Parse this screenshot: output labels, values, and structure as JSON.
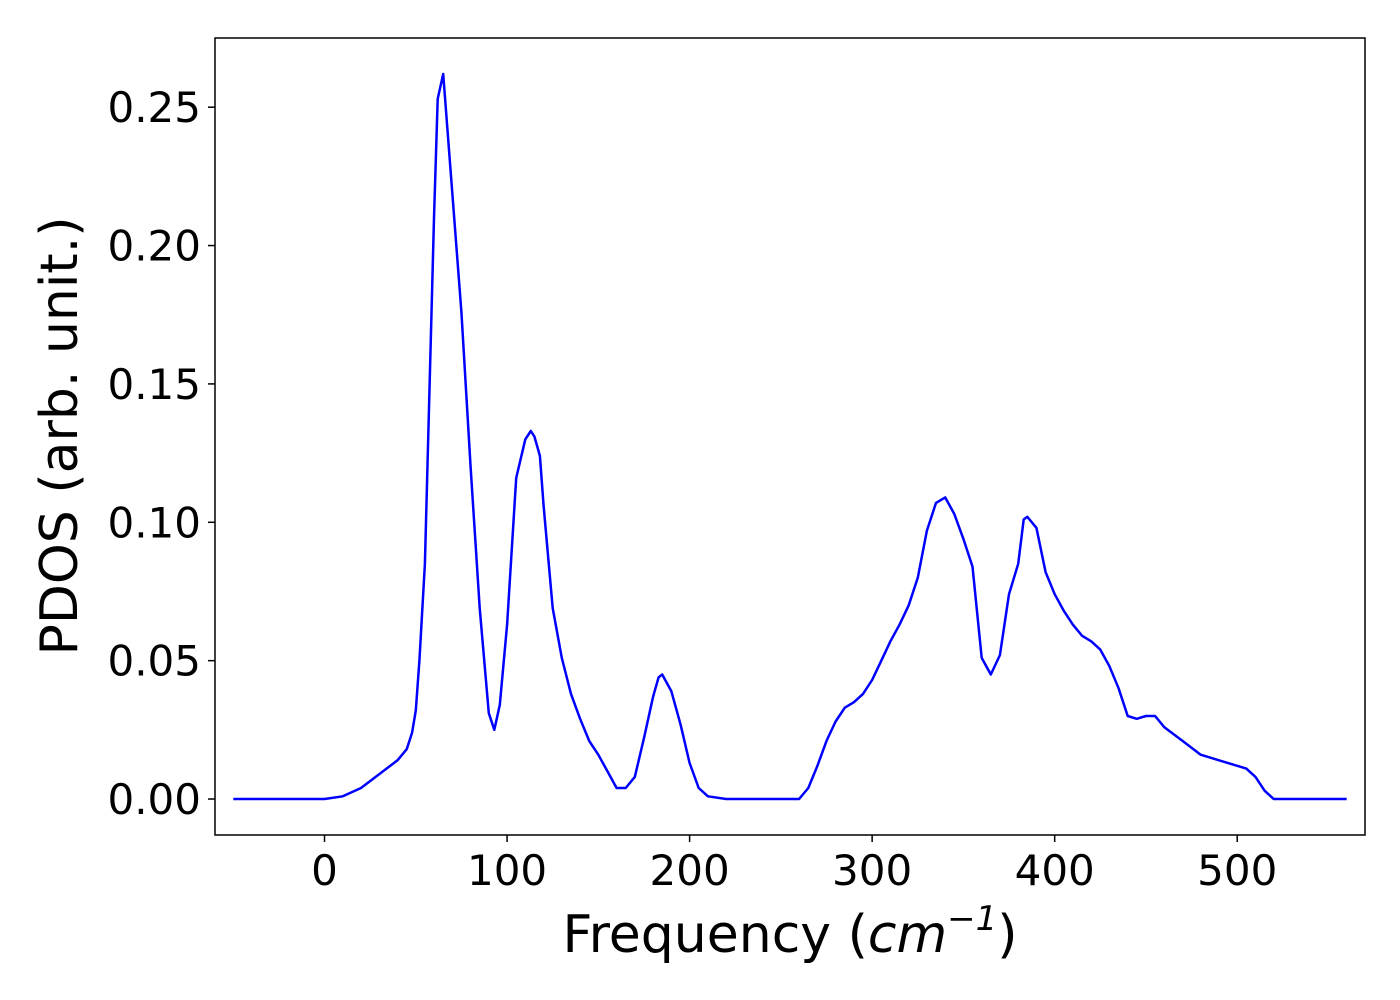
{
  "chart_data": {
    "type": "line",
    "title": "",
    "xlabel": "Frequency (",
    "xlabel_math_base": "cm",
    "xlabel_math_sup": "−1",
    "xlabel_close": ")",
    "ylabel": "PDOS (arb. unit.)",
    "xlim": [
      -60,
      570
    ],
    "ylim": [
      -0.013,
      0.275
    ],
    "x_ticks": [
      0,
      100,
      200,
      300,
      400,
      500
    ],
    "x_tick_labels": [
      "0",
      "100",
      "200",
      "300",
      "400",
      "500"
    ],
    "y_ticks": [
      0.0,
      0.05,
      0.1,
      0.15,
      0.2,
      0.25
    ],
    "y_tick_labels": [
      "0.00",
      "0.05",
      "0.10",
      "0.15",
      "0.20",
      "0.25"
    ],
    "grid": false,
    "series": [
      {
        "color": "#0000ff",
        "x": [
          -50,
          0,
          10,
          20,
          30,
          40,
          45,
          48,
          50,
          52,
          55,
          60,
          62,
          65,
          70,
          75,
          80,
          85,
          90,
          93,
          96,
          100,
          105,
          110,
          113,
          115,
          118,
          120,
          125,
          130,
          135,
          140,
          145,
          150,
          155,
          160,
          165,
          170,
          175,
          180,
          183,
          185,
          190,
          195,
          200,
          205,
          210,
          220,
          230,
          240,
          250,
          260,
          265,
          270,
          275,
          280,
          285,
          290,
          295,
          300,
          305,
          310,
          315,
          320,
          325,
          330,
          335,
          340,
          345,
          350,
          355,
          360,
          365,
          370,
          375,
          380,
          383,
          385,
          390,
          395,
          400,
          405,
          410,
          415,
          420,
          425,
          430,
          435,
          440,
          445,
          450,
          455,
          460,
          470,
          480,
          490,
          500,
          505,
          510,
          515,
          520,
          530,
          560
        ],
        "y": [
          0.0,
          0.0,
          0.001,
          0.004,
          0.009,
          0.014,
          0.018,
          0.024,
          0.032,
          0.05,
          0.085,
          0.21,
          0.253,
          0.262,
          0.219,
          0.176,
          0.12,
          0.069,
          0.031,
          0.025,
          0.034,
          0.063,
          0.116,
          0.13,
          0.133,
          0.131,
          0.124,
          0.106,
          0.069,
          0.051,
          0.038,
          0.029,
          0.021,
          0.016,
          0.01,
          0.004,
          0.004,
          0.008,
          0.022,
          0.037,
          0.044,
          0.045,
          0.039,
          0.027,
          0.013,
          0.004,
          0.001,
          0.0,
          0.0,
          0.0,
          0.0,
          0.0,
          0.004,
          0.012,
          0.021,
          0.028,
          0.033,
          0.035,
          0.038,
          0.043,
          0.05,
          0.057,
          0.063,
          0.07,
          0.08,
          0.097,
          0.107,
          0.109,
          0.103,
          0.094,
          0.084,
          0.051,
          0.045,
          0.052,
          0.074,
          0.085,
          0.101,
          0.102,
          0.098,
          0.082,
          0.074,
          0.068,
          0.063,
          0.059,
          0.057,
          0.054,
          0.048,
          0.04,
          0.03,
          0.029,
          0.03,
          0.03,
          0.026,
          0.021,
          0.016,
          0.014,
          0.012,
          0.011,
          0.008,
          0.003,
          0.0,
          0.0,
          0.0
        ]
      }
    ]
  }
}
